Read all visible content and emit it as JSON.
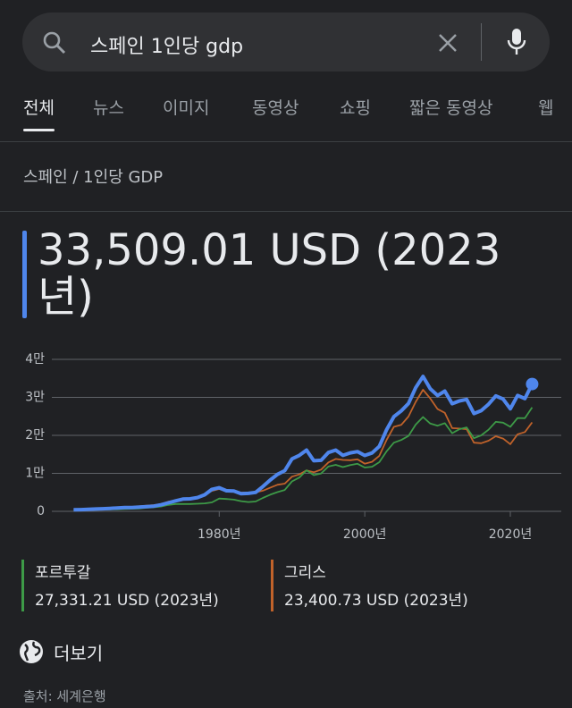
{
  "search": {
    "query": "스페인 1인당 gdp"
  },
  "tabs": [
    "전체",
    "뉴스",
    "이미지",
    "동영상",
    "쇼핑",
    "짧은 동영상",
    "웹"
  ],
  "breadcrumb": "스페인 / 1인당 GDP",
  "headline": "33,509.01 USD (2023년)",
  "chart_data": {
    "type": "line",
    "x": [
      1960,
      1961,
      1962,
      1963,
      1964,
      1965,
      1966,
      1967,
      1968,
      1969,
      1970,
      1971,
      1972,
      1973,
      1974,
      1975,
      1976,
      1977,
      1978,
      1979,
      1980,
      1981,
      1982,
      1983,
      1984,
      1985,
      1986,
      1987,
      1988,
      1989,
      1990,
      1991,
      1992,
      1993,
      1994,
      1995,
      1996,
      1997,
      1998,
      1999,
      2000,
      2001,
      2002,
      2003,
      2004,
      2005,
      2006,
      2007,
      2008,
      2009,
      2010,
      2011,
      2012,
      2013,
      2014,
      2015,
      2016,
      2017,
      2018,
      2019,
      2020,
      2021,
      2022,
      2023
    ],
    "xlim": [
      1957,
      2027
    ],
    "xticks": [
      {
        "value": 1980,
        "label": "1980년"
      },
      {
        "value": 2000,
        "label": "2000년"
      },
      {
        "value": 2020,
        "label": "2020년"
      }
    ],
    "ylim": [
      0,
      40000
    ],
    "yticks": [
      0,
      {
        "value": 10000,
        "label": "1만"
      },
      {
        "value": 20000,
        "label": "2만"
      },
      {
        "value": 30000,
        "label": "3만"
      },
      {
        "value": 40000,
        "label": "4만"
      }
    ],
    "grid": true,
    "series": [
      {
        "color": "#4f86ec",
        "values": [
          396,
          449,
          522,
          612,
          682,
          781,
          901,
          1005,
          1001,
          1111,
          1212,
          1363,
          1710,
          2242,
          2760,
          3213,
          3287,
          3623,
          4348,
          5790,
          6209,
          5413,
          5349,
          4630,
          4734,
          4999,
          6528,
          8247,
          9715,
          10708,
          13805,
          14721,
          16111,
          13326,
          13439,
          15471,
          16110,
          14721,
          15395,
          15717,
          14713,
          15364,
          17102,
          21495,
          24907,
          26430,
          28366,
          32550,
          35510,
          32256,
          30503,
          31636,
          28324,
          29059,
          29462,
          25732,
          26505,
          28185,
          30380,
          29555,
          26984,
          30490,
          29675,
          33509.01
        ]
      },
      {
        "name": "포르투갈",
        "latest_label": "27,331.21 USD (2023년)",
        "color": "#3d9a47",
        "values": [
          360,
          380,
          400,
          430,
          460,
          510,
          550,
          610,
          680,
          740,
          930,
          1050,
          1280,
          1690,
          1920,
          1940,
          1940,
          2010,
          2100,
          2360,
          3360,
          3250,
          3080,
          2680,
          2440,
          2590,
          3520,
          4380,
          5070,
          5620,
          7890,
          8900,
          10800,
          9530,
          9980,
          11780,
          12230,
          11640,
          12190,
          12510,
          11530,
          11740,
          12940,
          15800,
          18060,
          18780,
          19840,
          22830,
          24820,
          23100,
          22540,
          23200,
          20560,
          21620,
          22100,
          19250,
          19990,
          21490,
          23550,
          23330,
          22240,
          24570,
          24520,
          27331.21
        ]
      },
      {
        "name": "그리스",
        "latest_label": "23,400.73 USD (2023년)",
        "color": "#c0622a",
        "values": [
          520,
          590,
          630,
          710,
          800,
          900,
          990,
          1070,
          1170,
          1310,
          1500,
          1640,
          1910,
          2550,
          2830,
          3070,
          3340,
          3750,
          4430,
          5380,
          5880,
          5240,
          5360,
          4950,
          4960,
          5000,
          5440,
          6210,
          6990,
          7300,
          9140,
          9710,
          10780,
          10280,
          10980,
          12880,
          13790,
          13530,
          13460,
          13700,
          12540,
          13040,
          14610,
          18820,
          22230,
          22750,
          24950,
          28800,
          31990,
          29710,
          26920,
          25920,
          21910,
          21790,
          21620,
          18080,
          17920,
          18580,
          19760,
          19150,
          17660,
          20280,
          20870,
          23400.73
        ]
      }
    ]
  },
  "more_link": "더보기",
  "source": "출처: 세계은행"
}
